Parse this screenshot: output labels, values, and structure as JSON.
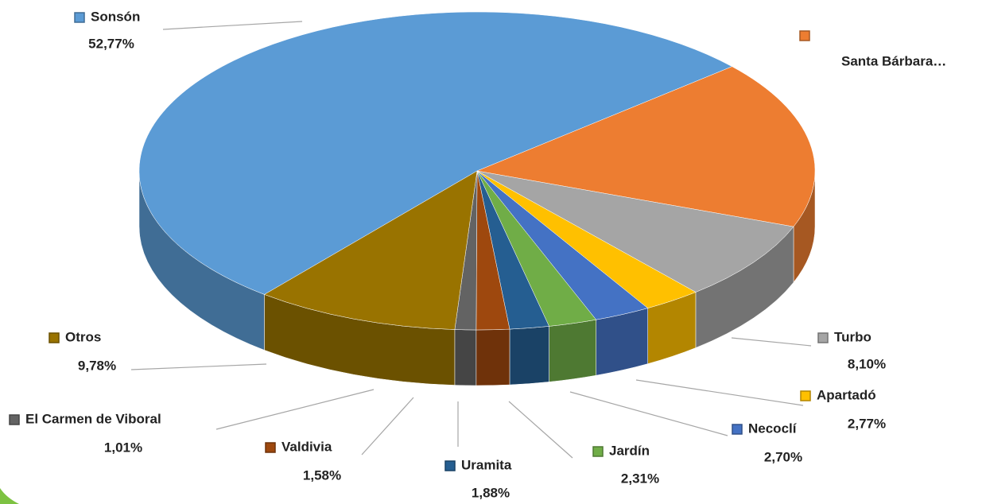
{
  "chart_data": {
    "type": "pie",
    "categories": [
      "Sonsón",
      "Santa Bárbara…",
      "Turbo",
      "Apartadó",
      "Necoclí",
      "Jardín",
      "Uramita",
      "Valdivia",
      "El Carmen de Viboral",
      "Otros"
    ],
    "values": [
      52.77,
      17.1,
      8.1,
      2.77,
      2.7,
      2.31,
      1.88,
      1.58,
      1.01,
      9.78
    ],
    "value_labels": [
      "52,77%",
      null,
      "8,10%",
      "2,77%",
      "2,70%",
      "2,31%",
      "1,88%",
      "1,58%",
      "1,01%",
      "9,78%"
    ],
    "colors": [
      "#5b9bd5",
      "#ed7d31",
      "#a5a5a5",
      "#ffc000",
      "#4472c4",
      "#70ad47",
      "#255e91",
      "#9e480e",
      "#636363",
      "#997300"
    ]
  }
}
